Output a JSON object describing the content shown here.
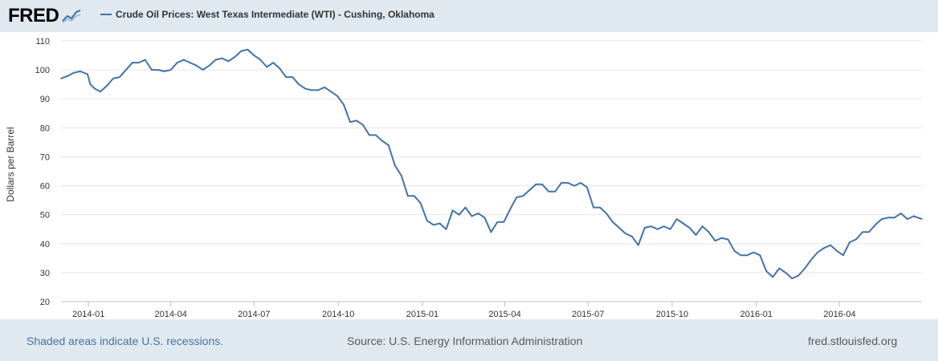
{
  "brand": {
    "logo": "FRED",
    "logo_icon": "line-chart-icon"
  },
  "colors": {
    "series": "#4572a7",
    "background": "#e1e9f0",
    "plot": "#ffffff",
    "grid": "#e6e6e6"
  },
  "footer": {
    "recession_note": "Shaded areas indicate U.S. recessions.",
    "source": "Source: U.S. Energy Information Administration",
    "site": "fred.stlouisfed.org"
  },
  "chart_data": {
    "type": "line",
    "title": "",
    "xlabel": "",
    "ylabel": "Dollars per Barrel",
    "ylim": [
      20,
      110
    ],
    "yticks": [
      20,
      30,
      40,
      50,
      60,
      70,
      80,
      90,
      100,
      110
    ],
    "xlim": [
      "2013-12-02",
      "2016-06-30"
    ],
    "xticks": [
      "2014-01",
      "2014-04",
      "2014-07",
      "2014-10",
      "2015-01",
      "2015-04",
      "2015-07",
      "2015-10",
      "2016-01",
      "2016-04"
    ],
    "grid": true,
    "legend": "top-left",
    "series": [
      {
        "name": "Crude Oil Prices: West Texas Intermediate (WTI) - Cushing, Oklahoma",
        "points": [
          [
            "2013-12-02",
            97
          ],
          [
            "2013-12-06",
            97.5
          ],
          [
            "2013-12-10",
            98
          ],
          [
            "2013-12-16",
            99
          ],
          [
            "2013-12-23",
            99.5
          ],
          [
            "2013-12-31",
            98.5
          ],
          [
            "2014-01-03",
            95
          ],
          [
            "2014-01-08",
            93.5
          ],
          [
            "2014-01-14",
            92.5
          ],
          [
            "2014-01-21",
            94.5
          ],
          [
            "2014-01-28",
            97
          ],
          [
            "2014-02-04",
            97.5
          ],
          [
            "2014-02-11",
            100
          ],
          [
            "2014-02-18",
            102.5
          ],
          [
            "2014-02-25",
            102.5
          ],
          [
            "2014-03-04",
            103.5
          ],
          [
            "2014-03-11",
            100
          ],
          [
            "2014-03-18",
            100
          ],
          [
            "2014-03-25",
            99.5
          ],
          [
            "2014-04-01",
            100
          ],
          [
            "2014-04-08",
            102.5
          ],
          [
            "2014-04-15",
            103.5
          ],
          [
            "2014-04-22",
            102.5
          ],
          [
            "2014-04-29",
            101.5
          ],
          [
            "2014-05-06",
            100
          ],
          [
            "2014-05-13",
            101.5
          ],
          [
            "2014-05-20",
            103.5
          ],
          [
            "2014-05-27",
            104
          ],
          [
            "2014-06-03",
            103
          ],
          [
            "2014-06-10",
            104.5
          ],
          [
            "2014-06-17",
            106.5
          ],
          [
            "2014-06-24",
            107
          ],
          [
            "2014-07-01",
            105
          ],
          [
            "2014-07-08",
            103.5
          ],
          [
            "2014-07-15",
            101
          ],
          [
            "2014-07-22",
            102.5
          ],
          [
            "2014-07-29",
            100.5
          ],
          [
            "2014-08-05",
            97.5
          ],
          [
            "2014-08-12",
            97.5
          ],
          [
            "2014-08-19",
            95
          ],
          [
            "2014-08-26",
            93.5
          ],
          [
            "2014-09-02",
            93
          ],
          [
            "2014-09-09",
            93
          ],
          [
            "2014-09-16",
            94
          ],
          [
            "2014-09-23",
            92.5
          ],
          [
            "2014-09-30",
            91
          ],
          [
            "2014-10-07",
            88
          ],
          [
            "2014-10-14",
            82
          ],
          [
            "2014-10-21",
            82.5
          ],
          [
            "2014-10-28",
            81
          ],
          [
            "2014-11-04",
            77.5
          ],
          [
            "2014-11-11",
            77.5
          ],
          [
            "2014-11-18",
            75.5
          ],
          [
            "2014-11-25",
            74
          ],
          [
            "2014-12-02",
            67
          ],
          [
            "2014-12-09",
            63.5
          ],
          [
            "2014-12-16",
            56.5
          ],
          [
            "2014-12-23",
            56.5
          ],
          [
            "2014-12-30",
            54
          ],
          [
            "2015-01-06",
            48
          ],
          [
            "2015-01-13",
            46.5
          ],
          [
            "2015-01-20",
            47
          ],
          [
            "2015-01-27",
            45
          ],
          [
            "2015-02-03",
            51.5
          ],
          [
            "2015-02-10",
            50
          ],
          [
            "2015-02-17",
            52.5
          ],
          [
            "2015-02-24",
            49.5
          ],
          [
            "2015-03-03",
            50.5
          ],
          [
            "2015-03-10",
            49
          ],
          [
            "2015-03-17",
            44
          ],
          [
            "2015-03-24",
            47.5
          ],
          [
            "2015-03-31",
            47.5
          ],
          [
            "2015-04-07",
            52
          ],
          [
            "2015-04-14",
            56
          ],
          [
            "2015-04-21",
            56.5
          ],
          [
            "2015-04-28",
            58.5
          ],
          [
            "2015-05-05",
            60.5
          ],
          [
            "2015-05-12",
            60.5
          ],
          [
            "2015-05-19",
            58
          ],
          [
            "2015-05-26",
            58
          ],
          [
            "2015-06-02",
            61
          ],
          [
            "2015-06-09",
            61
          ],
          [
            "2015-06-16",
            60
          ],
          [
            "2015-06-23",
            61
          ],
          [
            "2015-06-30",
            59.5
          ],
          [
            "2015-07-07",
            52.5
          ],
          [
            "2015-07-14",
            52.5
          ],
          [
            "2015-07-21",
            50.5
          ],
          [
            "2015-07-28",
            47.5
          ],
          [
            "2015-08-04",
            45.5
          ],
          [
            "2015-08-11",
            43.5
          ],
          [
            "2015-08-18",
            42.5
          ],
          [
            "2015-08-25",
            39.5
          ],
          [
            "2015-09-01",
            45.5
          ],
          [
            "2015-09-08",
            46
          ],
          [
            "2015-09-15",
            45
          ],
          [
            "2015-09-22",
            46
          ],
          [
            "2015-09-29",
            45
          ],
          [
            "2015-10-06",
            48.5
          ],
          [
            "2015-10-13",
            47
          ],
          [
            "2015-10-20",
            45.5
          ],
          [
            "2015-10-27",
            43
          ],
          [
            "2015-11-03",
            46
          ],
          [
            "2015-11-10",
            44
          ],
          [
            "2015-11-17",
            41
          ],
          [
            "2015-11-24",
            42
          ],
          [
            "2015-12-01",
            41.5
          ],
          [
            "2015-12-08",
            37.5
          ],
          [
            "2015-12-15",
            36
          ],
          [
            "2015-12-22",
            36
          ],
          [
            "2015-12-29",
            37
          ],
          [
            "2016-01-05",
            36
          ],
          [
            "2016-01-12",
            30.5
          ],
          [
            "2016-01-19",
            28.5
          ],
          [
            "2016-01-26",
            31.5
          ],
          [
            "2016-02-02",
            30
          ],
          [
            "2016-02-09",
            28
          ],
          [
            "2016-02-16",
            29
          ],
          [
            "2016-02-23",
            31.5
          ],
          [
            "2016-03-01",
            34.5
          ],
          [
            "2016-03-08",
            37
          ],
          [
            "2016-03-15",
            38.5
          ],
          [
            "2016-03-22",
            39.5
          ],
          [
            "2016-03-29",
            37.5
          ],
          [
            "2016-04-05",
            36
          ],
          [
            "2016-04-12",
            40.5
          ],
          [
            "2016-04-19",
            41.5
          ],
          [
            "2016-04-26",
            44
          ],
          [
            "2016-05-03",
            44
          ],
          [
            "2016-05-10",
            46.5
          ],
          [
            "2016-05-17",
            48.5
          ],
          [
            "2016-05-24",
            49
          ],
          [
            "2016-05-31",
            49
          ],
          [
            "2016-06-07",
            50.5
          ],
          [
            "2016-06-14",
            48.5
          ],
          [
            "2016-06-21",
            49.5
          ],
          [
            "2016-06-30",
            48.5
          ]
        ]
      }
    ]
  }
}
